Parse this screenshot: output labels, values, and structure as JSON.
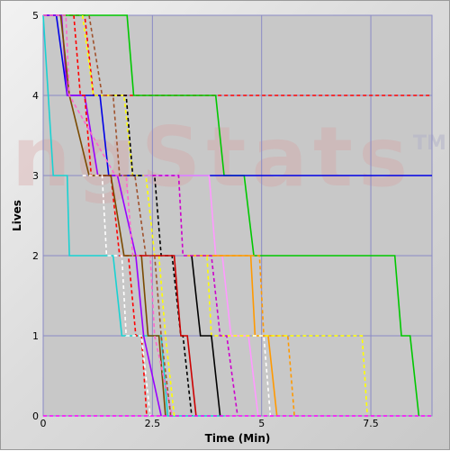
{
  "watermark": {
    "text": "ngStats",
    "mark": "TM"
  },
  "chart_data": {
    "type": "line",
    "title": "",
    "xlabel": "Time (Min)",
    "ylabel": "Lives",
    "xlim": [
      0,
      8.9
    ],
    "ylim": [
      0,
      5
    ],
    "x_ticks": [
      0,
      2.5,
      5,
      7.5
    ],
    "x_tick_labels": [
      "0",
      "2.5",
      "5",
      "7.5"
    ],
    "y_ticks": [
      0,
      1,
      2,
      3,
      4,
      5
    ],
    "y_tick_labels": [
      "0",
      "1",
      "2",
      "3",
      "4",
      "5"
    ],
    "grid": true,
    "legend": "none",
    "plot_background": "#c8c8c8",
    "grid_color": "#8a8ac6",
    "series": [
      {
        "color": "#ff0000",
        "dash": true,
        "points": [
          [
            0.02,
            5
          ],
          [
            0.95,
            5
          ],
          [
            1.15,
            4
          ],
          [
            8.9,
            4
          ]
        ]
      },
      {
        "color": "#00c800",
        "dash": false,
        "points": [
          [
            0,
            5
          ],
          [
            1.92,
            5
          ],
          [
            2.07,
            4
          ],
          [
            3.95,
            4
          ],
          [
            4.14,
            3
          ],
          [
            4.6,
            3
          ],
          [
            4.82,
            2
          ],
          [
            8.05,
            2
          ],
          [
            8.2,
            1
          ],
          [
            8.4,
            1
          ],
          [
            8.6,
            0
          ]
        ]
      },
      {
        "color": "#0000e6",
        "dash": false,
        "points": [
          [
            0,
            5
          ],
          [
            0.3,
            5
          ],
          [
            0.55,
            4
          ],
          [
            1.3,
            4
          ],
          [
            1.5,
            3
          ],
          [
            8.9,
            3
          ]
        ]
      },
      {
        "color": "#19d2d2",
        "dash": false,
        "points": [
          [
            0,
            5
          ],
          [
            0.23,
            3
          ],
          [
            0.55,
            3
          ],
          [
            0.6,
            2
          ],
          [
            0.95,
            2
          ],
          [
            1.25,
            2
          ],
          [
            1.6,
            2
          ],
          [
            1.8,
            1
          ],
          [
            2.05,
            1
          ],
          [
            2.7,
            1
          ],
          [
            2.85,
            0
          ],
          [
            4.15,
            0
          ]
        ]
      },
      {
        "color": "#9900ff",
        "dash": false,
        "points": [
          [
            0,
            5
          ],
          [
            0.42,
            5
          ],
          [
            0.55,
            4
          ],
          [
            0.95,
            4
          ],
          [
            1.25,
            3
          ],
          [
            1.7,
            3
          ],
          [
            2.12,
            2
          ],
          [
            2.3,
            1
          ],
          [
            2.7,
            0
          ]
        ]
      },
      {
        "color": "#ff0000",
        "dash": true,
        "points": [
          [
            0.7,
            5
          ],
          [
            0.85,
            4
          ],
          [
            0.95,
            4
          ],
          [
            1.1,
            3
          ],
          [
            1.55,
            3
          ],
          [
            1.75,
            2
          ],
          [
            1.95,
            2
          ],
          [
            2.12,
            1
          ],
          [
            2.25,
            1
          ],
          [
            2.37,
            0
          ]
        ]
      },
      {
        "color": "#ffff00",
        "dash": true,
        "points": [
          [
            0.9,
            5
          ],
          [
            1.15,
            4
          ],
          [
            1.85,
            4
          ],
          [
            2.05,
            3
          ],
          [
            2.35,
            3
          ],
          [
            2.55,
            2
          ],
          [
            2.65,
            2
          ],
          [
            2.8,
            1
          ],
          [
            3.0,
            0
          ]
        ]
      },
      {
        "color": "#7a4a00",
        "dash": false,
        "points": [
          [
            0.4,
            5
          ],
          [
            0.6,
            4
          ],
          [
            1.05,
            3
          ],
          [
            1.55,
            3
          ],
          [
            1.85,
            2
          ],
          [
            2.25,
            2
          ],
          [
            2.4,
            1
          ],
          [
            2.65,
            1
          ],
          [
            2.8,
            0
          ]
        ]
      },
      {
        "color": "#ffffff",
        "dash": true,
        "points": [
          [
            0.9,
            3
          ],
          [
            1.35,
            3
          ],
          [
            1.45,
            2
          ],
          [
            1.8,
            2
          ],
          [
            1.9,
            1
          ],
          [
            2.25,
            1
          ],
          [
            2.45,
            0
          ]
        ]
      },
      {
        "color": "#000000",
        "dash": true,
        "points": [
          [
            1.55,
            4
          ],
          [
            1.9,
            4
          ],
          [
            2.05,
            3
          ],
          [
            2.55,
            3
          ],
          [
            2.7,
            2
          ],
          [
            2.95,
            2
          ],
          [
            3.15,
            1
          ],
          [
            3.2,
            1
          ],
          [
            3.4,
            0
          ]
        ]
      },
      {
        "color": "#ff66cc",
        "dash": true,
        "points": [
          [
            0,
            5
          ],
          [
            0.52,
            5
          ],
          [
            0.6,
            4
          ],
          [
            1.65,
            3
          ],
          [
            1.9,
            3
          ],
          [
            2.05,
            2
          ],
          [
            2.45,
            2
          ],
          [
            2.55,
            1
          ],
          [
            2.95,
            0
          ]
        ]
      },
      {
        "color": "#ff99ff",
        "dash": false,
        "points": [
          [
            2.3,
            3
          ],
          [
            3.8,
            3
          ],
          [
            3.95,
            2
          ],
          [
            4.1,
            2
          ],
          [
            4.3,
            1
          ],
          [
            4.7,
            1
          ],
          [
            4.92,
            0
          ]
        ]
      },
      {
        "color": "#cc0000",
        "dash": false,
        "points": [
          [
            2.2,
            2
          ],
          [
            3.0,
            2
          ],
          [
            3.15,
            1
          ],
          [
            3.3,
            1
          ],
          [
            3.5,
            0
          ]
        ]
      },
      {
        "color": "#ff9900",
        "dash": false,
        "points": [
          [
            3.3,
            2
          ],
          [
            4.75,
            2
          ],
          [
            4.85,
            1
          ],
          [
            5.15,
            1
          ],
          [
            5.35,
            0
          ]
        ]
      },
      {
        "color": "#ff9900",
        "dash": true,
        "points": [
          [
            3.6,
            2
          ],
          [
            4.95,
            2
          ],
          [
            5.05,
            1
          ],
          [
            5.6,
            1
          ],
          [
            5.75,
            0
          ]
        ]
      },
      {
        "color": "#ffff00",
        "dash": true,
        "points": [
          [
            3.35,
            2
          ],
          [
            3.75,
            2
          ],
          [
            3.85,
            1
          ],
          [
            5.5,
            1
          ],
          [
            7.3,
            1
          ],
          [
            7.42,
            0
          ]
        ]
      },
      {
        "color": "#ffffff",
        "dash": true,
        "points": [
          [
            4.8,
            1
          ],
          [
            5.05,
            1
          ],
          [
            5.2,
            0
          ]
        ]
      },
      {
        "color": "#000000",
        "dash": false,
        "points": [
          [
            3.4,
            2
          ],
          [
            3.6,
            1
          ],
          [
            3.85,
            1
          ],
          [
            4.05,
            0
          ]
        ]
      },
      {
        "color": "#a0522d",
        "dash": true,
        "points": [
          [
            1.05,
            5
          ],
          [
            1.35,
            4
          ],
          [
            1.6,
            4
          ],
          [
            1.75,
            3
          ],
          [
            2.1,
            3
          ],
          [
            2.35,
            2
          ],
          [
            2.55,
            2
          ],
          [
            2.7,
            1
          ],
          [
            2.92,
            0
          ]
        ]
      },
      {
        "color": "#cc00cc",
        "dash": true,
        "points": [
          [
            2.5,
            3
          ],
          [
            3.1,
            3
          ],
          [
            3.2,
            2
          ],
          [
            3.85,
            2
          ],
          [
            4.05,
            1
          ],
          [
            4.2,
            1
          ],
          [
            4.45,
            0
          ]
        ]
      },
      {
        "color": "#ff00ff",
        "dash": true,
        "points": [
          [
            0,
            0
          ],
          [
            8.9,
            0
          ]
        ]
      }
    ]
  }
}
